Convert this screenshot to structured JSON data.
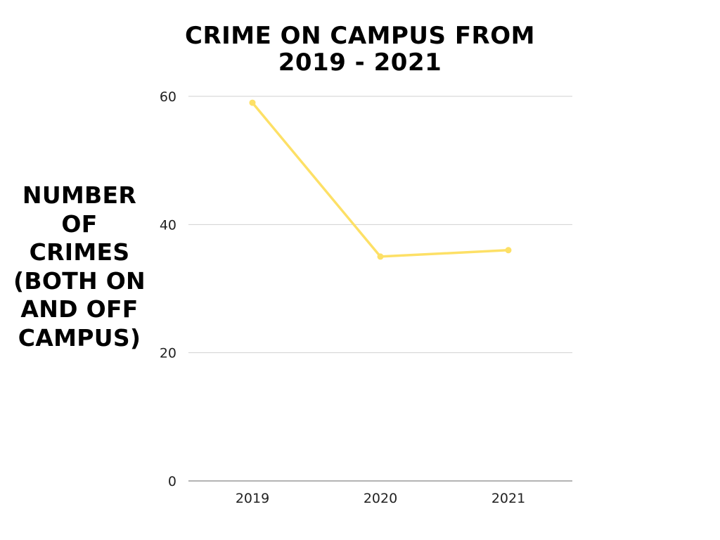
{
  "chart_data": {
    "type": "line",
    "title": [
      "CRIME ON CAMPUS FROM",
      "2019 - 2021"
    ],
    "ylabel": [
      "NUMBER",
      "OF",
      "CRIMES",
      "(BOTH ON",
      "AND OFF",
      "CAMPUS)"
    ],
    "xlabel": "",
    "categories": [
      "2019",
      "2020",
      "2021"
    ],
    "series": [
      {
        "values": [
          59,
          35,
          36
        ],
        "color": "#fde066"
      }
    ],
    "ylim": [
      0,
      60
    ],
    "yticks": [
      0,
      20,
      40,
      60
    ],
    "grid": true,
    "legend": "none"
  }
}
